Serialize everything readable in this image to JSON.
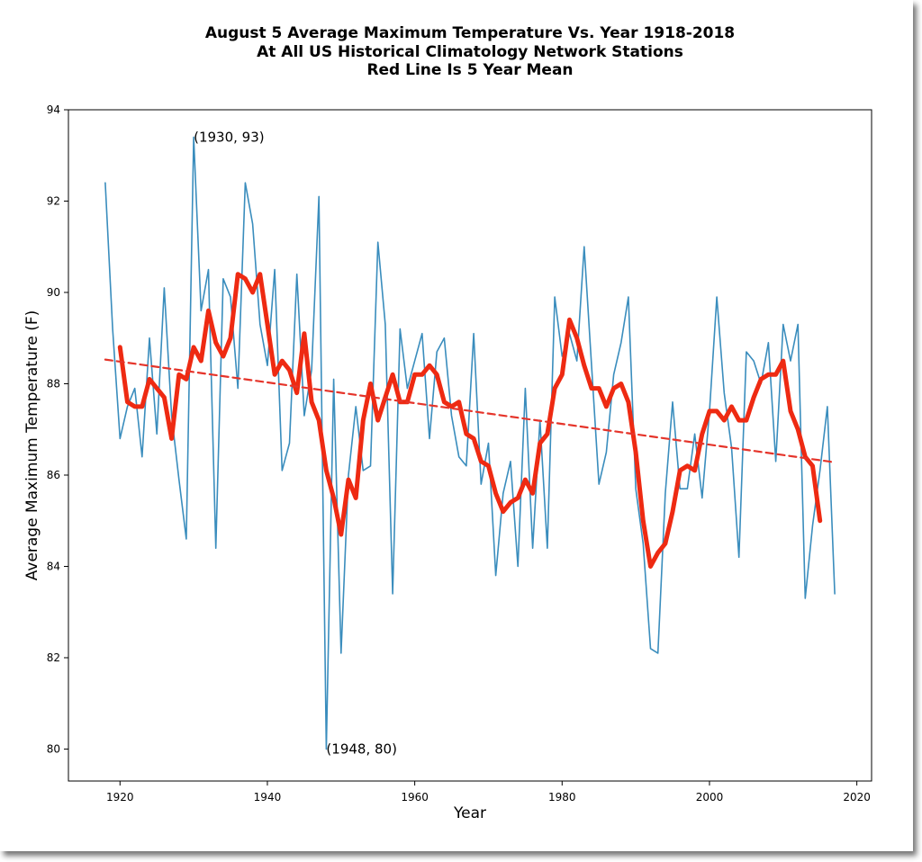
{
  "chart_data": {
    "type": "line",
    "title": [
      "August 5 Average Maximum Temperature Vs. Year 1918-2018",
      "At All US Historical Climatology Network Stations",
      "Red Line Is 5 Year Mean"
    ],
    "xlabel": "Year",
    "ylabel": "Average Maximum Temperature (F)",
    "xlim": [
      1913,
      2022
    ],
    "ylim": [
      79.3,
      94
    ],
    "xticks": [
      1920,
      1940,
      1960,
      1980,
      2000,
      2020
    ],
    "yticks": [
      80,
      82,
      84,
      86,
      88,
      90,
      92,
      94
    ],
    "grid": false,
    "annotations": [
      {
        "text": "(1930, 93)",
        "x": 1930,
        "y": 93.4
      },
      {
        "text": "(1948, 80)",
        "x": 1948,
        "y": 80.0
      }
    ],
    "series": [
      {
        "style": "annual",
        "color": "#3a8dbd",
        "x": [
          1918,
          1919,
          1920,
          1921,
          1922,
          1923,
          1924,
          1925,
          1926,
          1927,
          1928,
          1929,
          1930,
          1931,
          1932,
          1933,
          1934,
          1935,
          1936,
          1937,
          1938,
          1939,
          1940,
          1941,
          1942,
          1943,
          1944,
          1945,
          1946,
          1947,
          1948,
          1949,
          1950,
          1951,
          1952,
          1953,
          1954,
          1955,
          1956,
          1957,
          1958,
          1959,
          1960,
          1961,
          1962,
          1963,
          1964,
          1965,
          1966,
          1967,
          1968,
          1969,
          1970,
          1971,
          1972,
          1973,
          1974,
          1975,
          1976,
          1977,
          1978,
          1979,
          1980,
          1981,
          1982,
          1983,
          1984,
          1985,
          1986,
          1987,
          1988,
          1989,
          1990,
          1991,
          1992,
          1993,
          1994,
          1995,
          1996,
          1997,
          1998,
          1999,
          2000,
          2001,
          2002,
          2003,
          2004,
          2005,
          2006,
          2007,
          2008,
          2009,
          2010,
          2011,
          2012,
          2013,
          2014,
          2015,
          2016,
          2017
        ],
        "y": [
          92.4,
          89.2,
          86.8,
          87.5,
          87.9,
          86.4,
          89.0,
          86.9,
          90.1,
          87.3,
          85.9,
          84.6,
          93.4,
          89.6,
          90.5,
          84.4,
          90.3,
          89.9,
          87.9,
          92.4,
          91.5,
          89.3,
          88.4,
          90.5,
          86.1,
          86.7,
          90.4,
          87.3,
          88.3,
          92.1,
          80.0,
          88.1,
          82.1,
          86.0,
          87.5,
          86.1,
          86.2,
          91.1,
          89.3,
          83.4,
          89.2,
          87.9,
          88.5,
          89.1,
          86.8,
          88.7,
          89.0,
          87.3,
          86.4,
          86.2,
          89.1,
          85.8,
          86.7,
          83.8,
          85.6,
          86.3,
          84.0,
          87.9,
          84.4,
          87.2,
          84.4,
          89.9,
          88.6,
          89.1,
          88.5,
          91.0,
          88.4,
          85.8,
          86.5,
          88.2,
          88.9,
          89.9,
          85.7,
          84.5,
          82.2,
          82.1,
          85.6,
          87.6,
          85.7,
          85.7,
          86.9,
          85.5,
          87.4,
          89.9,
          87.8,
          86.6,
          84.2,
          88.7,
          88.5,
          88.0,
          88.9,
          86.3,
          89.3,
          88.5,
          89.3,
          83.3,
          84.9,
          86.1,
          87.5,
          83.4
        ]
      },
      {
        "style": "5-year mean",
        "color": "#ee2a12",
        "x": [
          1920,
          1921,
          1922,
          1923,
          1924,
          1925,
          1926,
          1927,
          1928,
          1929,
          1930,
          1931,
          1932,
          1933,
          1934,
          1935,
          1936,
          1937,
          1938,
          1939,
          1940,
          1941,
          1942,
          1943,
          1944,
          1945,
          1946,
          1947,
          1948,
          1949,
          1950,
          1951,
          1952,
          1953,
          1954,
          1955,
          1956,
          1957,
          1958,
          1959,
          1960,
          1961,
          1962,
          1963,
          1964,
          1965,
          1966,
          1967,
          1968,
          1969,
          1970,
          1971,
          1972,
          1973,
          1974,
          1975,
          1976,
          1977,
          1978,
          1979,
          1980,
          1981,
          1982,
          1983,
          1984,
          1985,
          1986,
          1987,
          1988,
          1989,
          1990,
          1991,
          1992,
          1993,
          1994,
          1995,
          1996,
          1997,
          1998,
          1999,
          2000,
          2001,
          2002,
          2003,
          2004,
          2005,
          2006,
          2007,
          2008,
          2009,
          2010,
          2011,
          2012,
          2013,
          2014,
          2015
        ],
        "y": [
          88.8,
          87.6,
          87.5,
          87.5,
          88.1,
          87.9,
          87.7,
          86.8,
          88.2,
          88.1,
          88.8,
          88.5,
          89.6,
          88.9,
          88.6,
          89.0,
          90.4,
          90.3,
          90.0,
          90.4,
          89.3,
          88.2,
          88.5,
          88.3,
          87.8,
          89.1,
          87.6,
          87.2,
          86.1,
          85.5,
          84.7,
          85.9,
          85.5,
          87.2,
          88.0,
          87.2,
          87.7,
          88.2,
          87.6,
          87.6,
          88.2,
          88.2,
          88.4,
          88.2,
          87.6,
          87.5,
          87.6,
          86.9,
          86.8,
          86.3,
          86.2,
          85.6,
          85.2,
          85.4,
          85.5,
          85.9,
          85.6,
          86.7,
          86.9,
          87.9,
          88.2,
          89.4,
          89.0,
          88.4,
          87.9,
          87.9,
          87.5,
          87.9,
          88.0,
          87.6,
          86.5,
          85.0,
          84.0,
          84.3,
          84.5,
          85.2,
          86.1,
          86.2,
          86.1,
          86.9,
          87.4,
          87.4,
          87.2,
          87.5,
          87.2,
          87.2,
          87.7,
          88.1,
          88.2,
          88.2,
          88.5,
          87.4,
          87.0,
          86.4,
          86.2,
          85.0
        ]
      },
      {
        "style": "trend",
        "color": "#e5342a",
        "x": [
          1918,
          2017
        ],
        "y": [
          88.53,
          86.28
        ]
      }
    ]
  }
}
